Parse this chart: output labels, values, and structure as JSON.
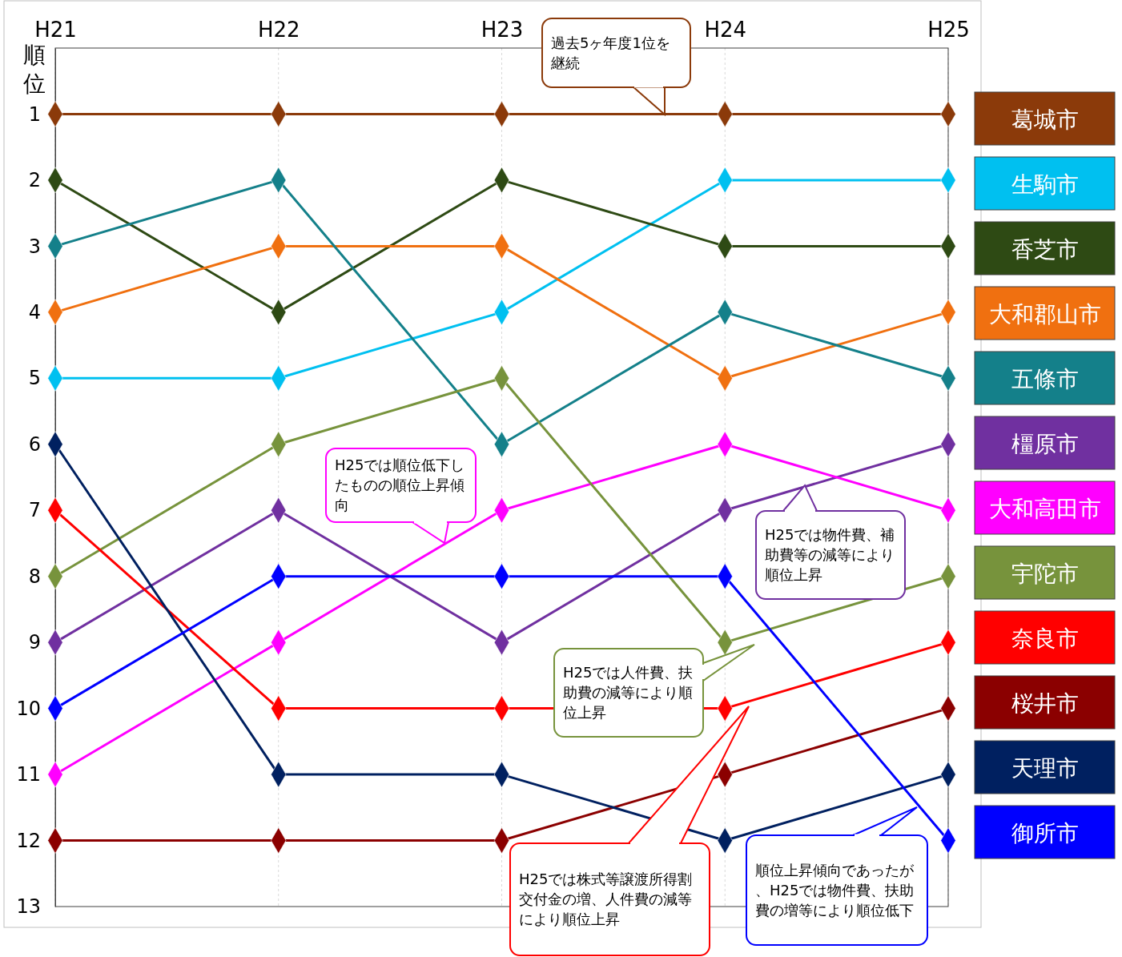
{
  "chart_data": {
    "type": "line",
    "ylabel": "順位",
    "categories": [
      "H21",
      "H22",
      "H23",
      "H24",
      "H25"
    ],
    "ylim": [
      13,
      0
    ],
    "yticks": [
      1,
      2,
      3,
      4,
      5,
      6,
      7,
      8,
      9,
      10,
      11,
      12,
      13
    ],
    "grid": "x",
    "legend": "right",
    "marker": "diamond",
    "line_style": "solid",
    "series": [
      {
        "name": "葛城市",
        "color": "#8b3a0a",
        "values": [
          1,
          1,
          1,
          1,
          1
        ]
      },
      {
        "name": "生駒市",
        "color": "#00c0f0",
        "values": [
          5,
          5,
          4,
          2,
          2
        ]
      },
      {
        "name": "香芝市",
        "color": "#2e4a14",
        "values": [
          2,
          4,
          2,
          3,
          3
        ]
      },
      {
        "name": "大和郡山市",
        "color": "#f07010",
        "values": [
          4,
          3,
          3,
          5,
          4
        ]
      },
      {
        "name": "五條市",
        "color": "#14808a",
        "values": [
          3,
          2,
          6,
          4,
          5
        ]
      },
      {
        "name": "橿原市",
        "color": "#7030a0",
        "values": [
          9,
          7,
          9,
          7,
          6
        ]
      },
      {
        "name": "大和高田市",
        "color": "#ff00ff",
        "values": [
          11,
          9,
          7,
          6,
          7
        ]
      },
      {
        "name": "宇陀市",
        "color": "#77933c",
        "values": [
          8,
          6,
          5,
          9,
          8
        ]
      },
      {
        "name": "奈良市",
        "color": "#ff0000",
        "values": [
          7,
          10,
          10,
          10,
          9
        ]
      },
      {
        "name": "桜井市",
        "color": "#8b0000",
        "values": [
          12,
          12,
          12,
          11,
          10
        ]
      },
      {
        "name": "天理市",
        "color": "#002060",
        "values": [
          6,
          11,
          11,
          12,
          11
        ]
      },
      {
        "name": "御所市",
        "color": "#0000ff",
        "values": [
          10,
          8,
          8,
          8,
          12
        ]
      }
    ],
    "annotations": [
      "過去5ヶ年度1位を継続",
      "H25では順位低下したものの順位上昇傾向",
      "H25では物件費、補助費等の減等により順位上昇",
      "H25では人件費、扶助費の減等により順位上昇",
      "H25では株式等譲渡所得割交付金の増、人件費の減等により順位上昇",
      "順位上昇傾向であったが、H25では物件費、扶助費の増等により順位低下"
    ]
  }
}
